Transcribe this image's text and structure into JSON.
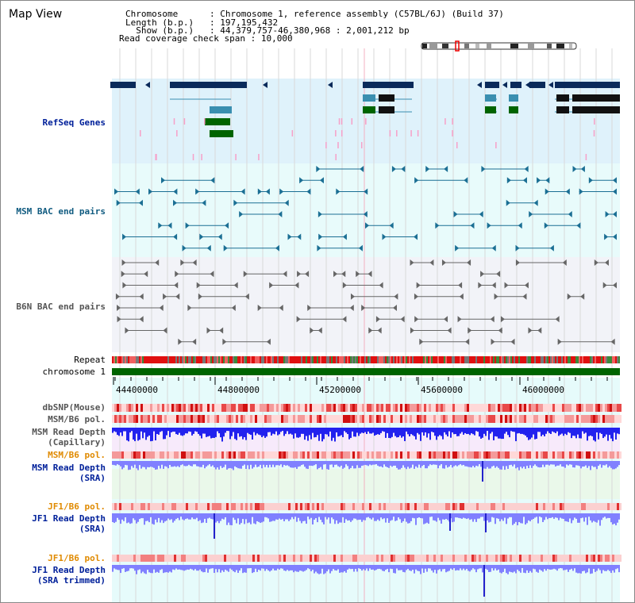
{
  "header": {
    "title": "Map View",
    "info": [
      {
        "key": "Chromosome      ",
        "value": "Chromosome 1, reference assembly (C57BL/6J) (Build 37)"
      },
      {
        "key": "Length (b.p.)   ",
        "value": "197,195,432"
      },
      {
        "key": "  Show (b.p.)   ",
        "value": "44,379,757-46,380,968 : 2,001,212 bp"
      },
      {
        "key": "Read coverage check span",
        "value": "10,000"
      }
    ]
  },
  "tracks": {
    "refseq": "RefSeq Genes",
    "msm_bac": "MSM BAC end pairs",
    "b6n_bac": "B6N BAC end pairs",
    "repeat": "Repeat",
    "chromosome": "chromosome 1",
    "dbsnp": "dbSNP(Mouse)",
    "msm_pol_1": "MSM/B6 pol.",
    "msm_depth_cap": "MSM Read Depth",
    "msm_depth_cap_sub": "(Capillary)",
    "msm_pol_2": "MSM/B6 pol.",
    "msm_depth_sra": "MSM Read Depth",
    "msm_depth_sra_sub": "(SRA)",
    "jf1_pol_1": "JF1/B6 pol.",
    "jf1_depth_sra": "JF1 Read Depth",
    "jf1_depth_sra_sub": "(SRA)",
    "jf1_pol_2": "JF1/B6 pol.",
    "jf1_depth_trim": "JF1 Read Depth",
    "jf1_depth_trim_sub": "(SRA trimmed)"
  },
  "axis": {
    "ticks": [
      "44400000",
      "44800000",
      "45200000",
      "45600000",
      "46000000"
    ]
  },
  "colors": {
    "refseq_bg": "#dff2fb",
    "msm_bg": "#e8fbfb",
    "b6n_bg": "#f2f3f8",
    "gene_navy": "#0a2a5a",
    "gene_teal": "#3a8fb0",
    "gene_green": "#006400",
    "chromosome": "#006400",
    "depth_blue": "#2222ee",
    "depth_light": "#8080ff"
  }
}
